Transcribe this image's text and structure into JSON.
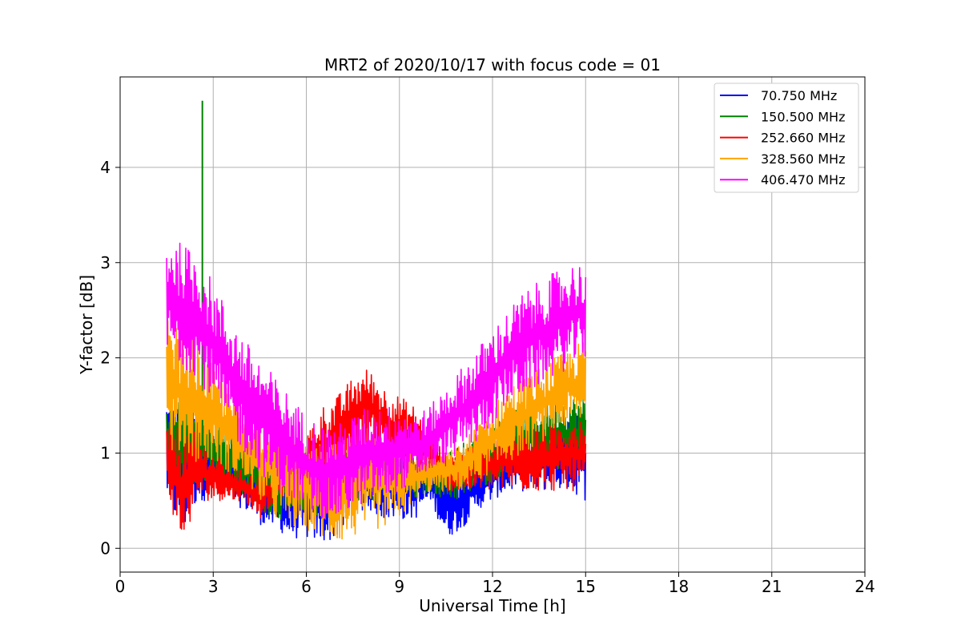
{
  "chart_data": {
    "type": "line",
    "title": "MRT2 of 2020/10/17 with focus code = 01",
    "xlabel": "Universal Time [h]",
    "ylabel": "Y-factor [dB]",
    "xlim": [
      0,
      24
    ],
    "ylim": [
      -0.25,
      4.95
    ],
    "xticks": [
      0,
      3,
      6,
      9,
      12,
      15,
      18,
      21,
      24
    ],
    "xtick_labels": [
      "0",
      "3",
      "6",
      "9",
      "12",
      "15",
      "18",
      "21",
      "24"
    ],
    "yticks": [
      0,
      1,
      2,
      3,
      4
    ],
    "ytick_labels": [
      "0",
      "1",
      "2",
      "3",
      "4"
    ],
    "grid": true,
    "legend_position": "top-right",
    "series": [
      {
        "name": " 70.750 MHz",
        "color": "#0000ff",
        "x": [
          1.5,
          2.0,
          2.5,
          3.0,
          3.5,
          4.0,
          4.5,
          5.0,
          5.5,
          6.0,
          6.5,
          7.0,
          7.5,
          8.0,
          8.5,
          9.0,
          9.5,
          10.0,
          10.5,
          11.0,
          11.5,
          12.0,
          12.5,
          13.0,
          13.5,
          14.0,
          14.5,
          15.0
        ],
        "low": [
          0.5,
          0.1,
          0.5,
          0.5,
          0.5,
          0.4,
          0.25,
          0.2,
          0.1,
          0.1,
          0.05,
          0.1,
          0.3,
          0.4,
          0.3,
          0.3,
          0.3,
          0.5,
          0.1,
          0.2,
          0.4,
          0.5,
          0.6,
          0.6,
          0.6,
          0.6,
          0.6,
          0.5
        ],
        "high": [
          1.6,
          1.5,
          1.5,
          1.3,
          1.1,
          1.0,
          0.9,
          0.8,
          0.8,
          0.8,
          0.9,
          1.0,
          1.0,
          1.1,
          1.0,
          1.0,
          1.0,
          0.9,
          0.8,
          0.8,
          0.9,
          1.0,
          1.1,
          1.2,
          1.3,
          1.3,
          1.4,
          1.4
        ]
      },
      {
        "name": "150.500 MHz",
        "color": "#008000",
        "x": [
          1.5,
          2.0,
          2.5,
          3.0,
          3.5,
          4.0,
          4.5,
          5.0,
          5.5,
          6.0,
          6.5,
          7.0,
          7.5,
          8.0,
          8.5,
          9.0,
          9.5,
          10.0,
          10.5,
          11.0,
          11.5,
          12.0,
          12.5,
          13.0,
          13.5,
          14.0,
          14.5,
          15.0
        ],
        "low": [
          0.8,
          0.6,
          0.7,
          0.7,
          0.6,
          0.5,
          0.4,
          0.3,
          0.3,
          0.3,
          0.3,
          0.4,
          0.5,
          0.5,
          0.5,
          0.5,
          0.5,
          0.6,
          0.5,
          0.5,
          0.6,
          0.7,
          0.8,
          0.8,
          0.8,
          0.8,
          0.8,
          0.8
        ],
        "high": [
          1.6,
          1.7,
          1.6,
          1.4,
          1.3,
          1.2,
          1.1,
          1.0,
          0.9,
          0.9,
          0.9,
          1.0,
          1.1,
          1.1,
          1.0,
          1.0,
          1.0,
          1.0,
          1.0,
          1.1,
          1.2,
          1.3,
          1.4,
          1.5,
          1.5,
          1.6,
          1.6,
          1.6
        ],
        "spike": {
          "x": 2.65,
          "y": 4.7
        }
      },
      {
        "name": "252.660 MHz",
        "color": "#ff0000",
        "x": [
          1.5,
          2.0,
          2.5,
          3.0,
          3.5,
          4.0,
          4.5,
          5.0,
          5.5,
          6.0,
          6.5,
          7.0,
          7.5,
          8.0,
          8.5,
          9.0,
          9.5,
          10.0,
          10.5,
          11.0,
          11.5,
          12.0,
          12.5,
          13.0,
          13.5,
          14.0,
          14.5,
          15.0
        ],
        "low": [
          0.6,
          0.0,
          0.5,
          0.5,
          0.5,
          0.5,
          0.3,
          0.5,
          0.5,
          0.6,
          0.6,
          0.8,
          1.0,
          1.1,
          1.0,
          0.9,
          0.8,
          0.8,
          0.6,
          0.6,
          0.6,
          0.6,
          0.6,
          0.6,
          0.6,
          0.6,
          0.6,
          0.6
        ],
        "high": [
          1.3,
          1.3,
          1.2,
          1.0,
          0.9,
          0.8,
          0.8,
          0.8,
          1.0,
          1.2,
          1.5,
          1.6,
          1.8,
          1.9,
          1.7,
          1.6,
          1.5,
          1.2,
          1.0,
          1.0,
          1.1,
          1.2,
          1.3,
          1.3,
          1.3,
          1.3,
          1.4,
          1.4
        ]
      },
      {
        "name": "328.560 MHz",
        "color": "#ffa500",
        "x": [
          1.5,
          2.0,
          2.5,
          3.0,
          3.5,
          4.0,
          4.5,
          5.0,
          5.5,
          6.0,
          6.5,
          7.0,
          7.5,
          8.0,
          8.5,
          9.0,
          9.5,
          10.0,
          10.5,
          11.0,
          11.5,
          12.0,
          12.5,
          13.0,
          13.5,
          14.0,
          14.5,
          15.0
        ],
        "low": [
          1.0,
          1.0,
          0.9,
          0.9,
          0.8,
          0.7,
          0.5,
          0.3,
          0.2,
          0.2,
          0.1,
          0.05,
          0.1,
          0.2,
          0.2,
          0.3,
          0.5,
          0.6,
          0.6,
          0.6,
          0.7,
          0.8,
          0.9,
          1.0,
          1.1,
          1.2,
          1.3,
          1.3
        ],
        "high": [
          2.4,
          2.3,
          2.2,
          1.9,
          1.7,
          1.5,
          1.4,
          1.3,
          1.2,
          1.1,
          1.1,
          1.1,
          1.2,
          1.2,
          1.2,
          1.1,
          1.0,
          1.0,
          1.0,
          1.1,
          1.3,
          1.5,
          1.7,
          1.8,
          1.9,
          2.0,
          2.1,
          2.2
        ]
      },
      {
        "name": "406.470 MHz",
        "color": "#ff00ff",
        "x": [
          1.5,
          2.0,
          2.5,
          3.0,
          3.5,
          4.0,
          4.5,
          5.0,
          5.5,
          6.0,
          6.5,
          7.0,
          7.5,
          8.0,
          8.5,
          9.0,
          9.5,
          10.0,
          10.5,
          11.0,
          11.5,
          12.0,
          12.5,
          13.0,
          13.5,
          14.0,
          14.5,
          15.0
        ],
        "low": [
          2.0,
          1.9,
          1.8,
          1.5,
          1.2,
          1.0,
          0.8,
          0.6,
          0.5,
          0.4,
          0.3,
          0.3,
          0.4,
          0.5,
          0.5,
          0.6,
          0.7,
          0.8,
          0.9,
          1.0,
          1.1,
          1.3,
          1.5,
          1.6,
          1.7,
          1.8,
          1.9,
          2.0
        ],
        "high": [
          3.3,
          3.2,
          3.1,
          2.8,
          2.5,
          2.2,
          2.0,
          1.8,
          1.6,
          1.4,
          1.3,
          1.3,
          1.4,
          1.5,
          1.5,
          1.5,
          1.4,
          1.5,
          1.7,
          1.9,
          2.1,
          2.3,
          2.5,
          2.7,
          2.8,
          2.9,
          3.0,
          3.0
        ]
      }
    ]
  }
}
